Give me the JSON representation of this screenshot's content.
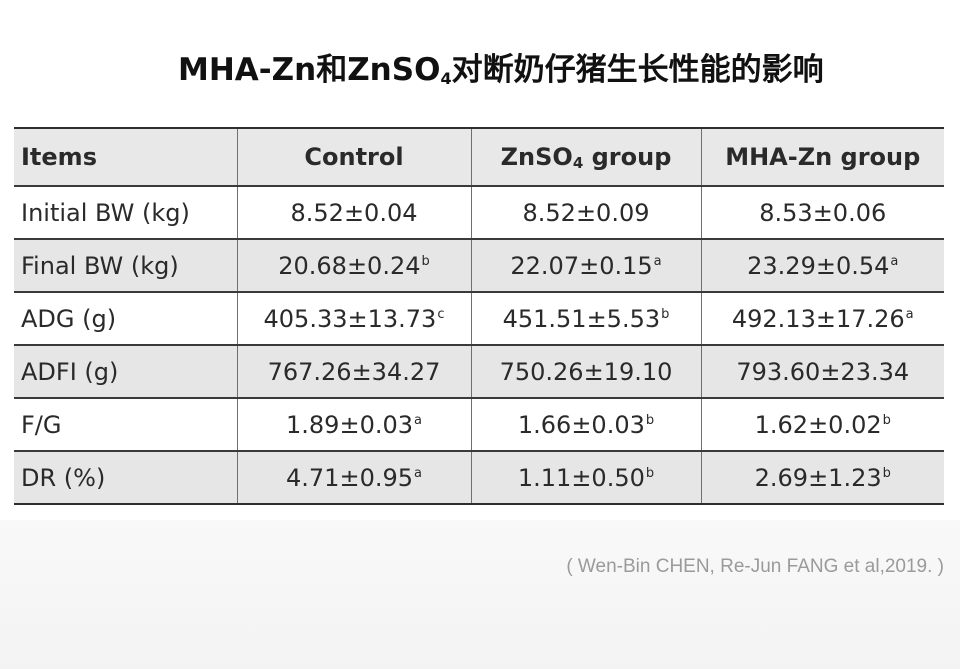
{
  "title": {
    "part1": "MHA-Zn和ZnSO",
    "subscript": "4",
    "part2": "对断奶仔猪生长性能的影响"
  },
  "table": {
    "headers": {
      "items": "Items",
      "control": "Control",
      "znso4_prefix": "ZnSO",
      "znso4_sub": "4",
      "znso4_suffix": " group",
      "mhazn": "MHA-Zn group"
    },
    "rows": [
      {
        "item": "Initial BW (kg)",
        "cells": [
          {
            "v": "8.52±0.04",
            "s": ""
          },
          {
            "v": "8.52±0.09",
            "s": ""
          },
          {
            "v": "8.53±0.06",
            "s": ""
          }
        ]
      },
      {
        "item": "Final BW (kg)",
        "cells": [
          {
            "v": "20.68±0.24",
            "s": "b"
          },
          {
            "v": "22.07±0.15",
            "s": "a"
          },
          {
            "v": "23.29±0.54",
            "s": "a"
          }
        ]
      },
      {
        "item": "ADG (g)",
        "cells": [
          {
            "v": "405.33±13.73",
            "s": "c"
          },
          {
            "v": "451.51±5.53",
            "s": "b"
          },
          {
            "v": "492.13±17.26",
            "s": "a"
          }
        ]
      },
      {
        "item": "ADFI (g)",
        "cells": [
          {
            "v": "767.26±34.27",
            "s": ""
          },
          {
            "v": "750.26±19.10",
            "s": ""
          },
          {
            "v": "793.60±23.34",
            "s": ""
          }
        ]
      },
      {
        "item": "F/G",
        "cells": [
          {
            "v": "1.89±0.03",
            "s": "a"
          },
          {
            "v": "1.66±0.03",
            "s": "b"
          },
          {
            "v": "1.62±0.02",
            "s": "b"
          }
        ]
      },
      {
        "item": "DR (%)",
        "cells": [
          {
            "v": "4.71±0.95",
            "s": "a"
          },
          {
            "v": "1.11±0.50",
            "s": "b"
          },
          {
            "v": "2.69±1.23",
            "s": "b"
          }
        ]
      }
    ]
  },
  "citation": "( Wen-Bin CHEN, Re-Jun FANG et al,2019. )"
}
